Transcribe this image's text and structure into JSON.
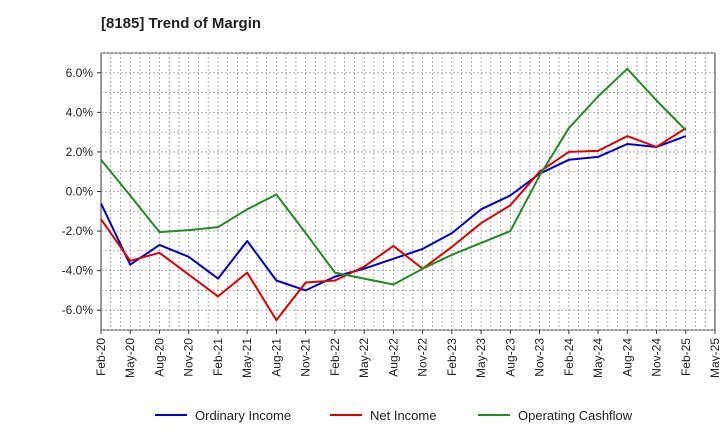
{
  "title": "[8185]  Trend of Margin",
  "colors": {
    "ordinary_income": "#0000cc",
    "net_income": "#dd0000",
    "operating_cashflow": "#228b22",
    "grid": "#999999",
    "axis": "#333333"
  },
  "chart_data": {
    "type": "line",
    "title": "[8185]  Trend of Margin",
    "xlabel": "",
    "ylabel": "",
    "ylim": [
      -7.0,
      7.0
    ],
    "y_ticks": [
      6.0,
      4.0,
      2.0,
      0.0,
      -2.0,
      -4.0,
      -6.0
    ],
    "y_tick_labels": [
      "6.0%",
      "4.0%",
      "2.0%",
      "0.0%",
      "-2.0%",
      "-4.0%",
      "-6.0%"
    ],
    "x_tick_labels": [
      "Feb-20",
      "May-20",
      "Aug-20",
      "Nov-20",
      "Feb-21",
      "May-21",
      "Aug-21",
      "Nov-21",
      "Feb-22",
      "May-22",
      "Aug-22",
      "Nov-22",
      "Feb-23",
      "May-23",
      "Aug-23",
      "Nov-23",
      "Feb-24",
      "May-24",
      "Aug-24",
      "Nov-24",
      "Feb-25",
      "May-25"
    ],
    "categories": [
      "Feb-20",
      "May-20",
      "Aug-20",
      "Nov-20",
      "Feb-21",
      "May-21",
      "Aug-21",
      "Nov-21",
      "Feb-22",
      "May-22",
      "Aug-22",
      "Nov-22",
      "Feb-23",
      "May-23",
      "Aug-23",
      "Nov-23",
      "Feb-24",
      "May-24",
      "Aug-24",
      "Nov-24",
      "Feb-25"
    ],
    "grid": true,
    "legend_position": "bottom",
    "series": [
      {
        "name": "Ordinary Income",
        "color": "#0000cc",
        "values": [
          -0.6,
          -3.7,
          -2.7,
          -3.3,
          -4.4,
          -2.5,
          -4.5,
          -5.0,
          -4.3,
          -3.9,
          -3.4,
          -2.9,
          -2.1,
          -0.9,
          -0.2,
          0.9,
          1.6,
          1.75,
          2.4,
          2.25,
          2.8
        ]
      },
      {
        "name": "Net Income",
        "color": "#dd0000",
        "values": [
          -1.4,
          -3.5,
          -3.1,
          -4.2,
          -5.3,
          -4.1,
          -6.5,
          -4.6,
          -4.5,
          -3.8,
          -2.75,
          -3.9,
          -2.8,
          -1.6,
          -0.7,
          1.0,
          2.0,
          2.05,
          2.8,
          2.25,
          3.2
        ]
      },
      {
        "name": "Operating Cashflow",
        "color": "#228b22",
        "values": [
          1.6,
          -0.2,
          -2.05,
          -1.95,
          -1.8,
          -0.9,
          -0.15,
          -2.1,
          -4.1,
          -4.4,
          -4.7,
          -3.9,
          -3.2,
          -2.6,
          -2.0,
          0.8,
          3.2,
          4.8,
          6.2,
          4.6,
          3.1
        ]
      }
    ]
  },
  "legend": {
    "items": [
      "Ordinary Income",
      "Net Income",
      "Operating Cashflow"
    ]
  }
}
